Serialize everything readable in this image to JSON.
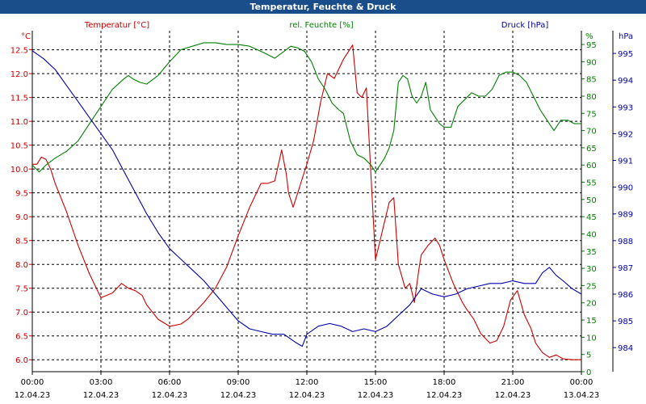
{
  "title": "Temperatur, Feuchte & Druck",
  "colors": {
    "temp": "#cc0000",
    "hum": "#008000",
    "press": "#0000aa",
    "axis": "#000000",
    "grid": "#000000",
    "title_bg": "#1a4e8a"
  },
  "chart_data": {
    "type": "line",
    "title": "Temperatur, Feuchte & Druck",
    "x_ticks": [
      {
        "time": "00:00",
        "date": "12.04.23"
      },
      {
        "time": "03:00",
        "date": "12.04.23"
      },
      {
        "time": "06:00",
        "date": "12.04.23"
      },
      {
        "time": "09:00",
        "date": "12.04.23"
      },
      {
        "time": "12:00",
        "date": "12.04.23"
      },
      {
        "time": "15:00",
        "date": "12.04.23"
      },
      {
        "time": "18:00",
        "date": "12.04.23"
      },
      {
        "time": "21:00",
        "date": "12.04.23"
      },
      {
        "time": "00:00",
        "date": "13.04.23"
      }
    ],
    "x_range_hours": [
      0,
      24
    ],
    "axes": {
      "temp": {
        "label": "Temperatur [°C]",
        "unit": "°C",
        "range": [
          5.75,
          12.9
        ],
        "ticks": [
          "12.5",
          "12.0",
          "11.5",
          "11.0",
          "10.5",
          "10.0",
          "9.5",
          "9.0",
          "8.5",
          "8.0",
          "7.5",
          "7.0",
          "6.5",
          "6.0"
        ]
      },
      "hum": {
        "label": "rel. Feuchte [%]",
        "unit": "%",
        "range": [
          0,
          99
        ],
        "ticks": [
          "95",
          "90",
          "85",
          "80",
          "75",
          "70",
          "65",
          "60",
          "55",
          "50",
          "45",
          "40",
          "35",
          "30",
          "25",
          "20",
          "15",
          "10",
          "5",
          "0"
        ]
      },
      "press": {
        "label": "Druck [hPa]",
        "unit": "hPa",
        "range": [
          983.1,
          995.85
        ],
        "ticks": [
          "995",
          "994",
          "993",
          "992",
          "991",
          "990",
          "989",
          "988",
          "987",
          "986",
          "985",
          "984"
        ]
      }
    },
    "series": [
      {
        "name": "Temperatur [°C]",
        "axis": "temp",
        "x": [
          0,
          0.2,
          0.4,
          0.6,
          0.8,
          1.0,
          1.5,
          2.0,
          2.5,
          3.0,
          3.5,
          3.9,
          4.2,
          4.5,
          4.8,
          5.0,
          5.5,
          6.0,
          6.5,
          6.8,
          7.0,
          7.5,
          8.0,
          8.5,
          9.0,
          9.5,
          10.0,
          10.3,
          10.6,
          10.9,
          11.1,
          11.2,
          11.4,
          11.6,
          11.8,
          12.0,
          12.3,
          12.6,
          12.9,
          13.2,
          13.6,
          14.0,
          14.2,
          14.4,
          14.6,
          14.8,
          15.0,
          15.2,
          15.4,
          15.6,
          15.8,
          16.0,
          16.3,
          16.5,
          16.7,
          16.9,
          17.0,
          17.3,
          17.6,
          17.8,
          18.0,
          18.2,
          18.4,
          18.6,
          18.8,
          19.0,
          19.3,
          19.6,
          20.0,
          20.3,
          20.6,
          20.9,
          21.2,
          21.5,
          21.8,
          22.0,
          22.3,
          22.6,
          22.9,
          23.2,
          23.6,
          23.8,
          24.0
        ],
        "values": [
          10.1,
          10.1,
          10.25,
          10.2,
          10.0,
          9.7,
          9.1,
          8.4,
          7.8,
          7.3,
          7.4,
          7.6,
          7.5,
          7.45,
          7.35,
          7.15,
          6.85,
          6.7,
          6.75,
          6.85,
          6.95,
          7.2,
          7.5,
          7.95,
          8.6,
          9.2,
          9.7,
          9.7,
          9.75,
          10.4,
          9.9,
          9.5,
          9.2,
          9.5,
          9.8,
          10.1,
          10.6,
          11.4,
          12.0,
          11.9,
          12.3,
          12.6,
          11.6,
          11.5,
          11.7,
          9.9,
          8.1,
          8.5,
          8.9,
          9.3,
          9.4,
          8.0,
          7.5,
          7.6,
          7.2,
          7.9,
          8.2,
          8.4,
          8.55,
          8.4,
          8.1,
          7.85,
          7.6,
          7.4,
          7.2,
          7.05,
          6.85,
          6.55,
          6.35,
          6.4,
          6.7,
          7.25,
          7.45,
          6.95,
          6.65,
          6.35,
          6.15,
          6.05,
          6.1,
          6.02,
          6.0,
          6.0,
          6.0
        ]
      },
      {
        "name": "rel. Feuchte [%]",
        "axis": "hum",
        "x": [
          0,
          0.3,
          0.6,
          1.0,
          1.5,
          2.0,
          2.5,
          3.0,
          3.5,
          4.0,
          4.2,
          4.4,
          4.7,
          5.0,
          5.5,
          6.0,
          6.5,
          7.0,
          7.5,
          8.0,
          8.5,
          9.0,
          9.5,
          10.0,
          10.3,
          10.6,
          11.0,
          11.3,
          11.6,
          11.9,
          12.2,
          12.5,
          12.8,
          13.1,
          13.4,
          13.6,
          13.9,
          14.2,
          14.5,
          14.8,
          15.0,
          15.2,
          15.4,
          15.6,
          15.8,
          16.0,
          16.2,
          16.4,
          16.6,
          16.8,
          17.0,
          17.2,
          17.4,
          17.6,
          17.8,
          18.0,
          18.3,
          18.6,
          18.9,
          19.2,
          19.5,
          19.8,
          20.1,
          20.4,
          20.7,
          21.0,
          21.3,
          21.6,
          21.9,
          22.2,
          22.5,
          22.8,
          23.1,
          23.4,
          23.7,
          24.0
        ],
        "values": [
          60,
          58,
          60,
          62,
          64,
          67,
          72,
          77,
          82,
          85,
          86,
          85,
          84,
          83.5,
          86,
          90,
          93.5,
          94.5,
          95.5,
          95.5,
          95,
          95,
          94.5,
          93,
          92,
          91,
          93,
          94.5,
          94,
          93,
          90,
          85,
          82,
          78,
          76,
          75,
          67,
          63,
          62,
          60,
          58,
          60,
          62,
          65,
          70,
          84,
          86,
          85,
          80,
          78,
          80,
          84,
          76,
          74,
          72,
          71,
          71,
          77,
          79,
          81,
          80,
          80,
          82,
          86,
          87,
          87,
          86,
          84,
          80,
          76,
          73,
          70,
          73,
          73,
          72,
          72
        ]
      },
      {
        "name": "Druck [hPa]",
        "axis": "press",
        "x": [
          0,
          0.5,
          1.0,
          1.5,
          2.0,
          2.5,
          3.0,
          3.5,
          4.0,
          4.5,
          5.0,
          5.5,
          6.0,
          6.5,
          7.0,
          7.5,
          8.0,
          8.5,
          9.0,
          9.5,
          10.0,
          10.5,
          11.0,
          11.5,
          11.8,
          12.0,
          12.5,
          13.0,
          13.5,
          14.0,
          14.5,
          15.0,
          15.5,
          16.0,
          16.5,
          17.0,
          17.5,
          18.0,
          18.5,
          19.0,
          19.5,
          20.0,
          20.5,
          21.0,
          21.5,
          22.0,
          22.3,
          22.6,
          22.9,
          23.2,
          23.6,
          24.0
        ],
        "values": [
          995.1,
          994.8,
          994.4,
          993.8,
          993.2,
          992.6,
          992.0,
          991.4,
          990.6,
          989.8,
          989.0,
          988.3,
          987.7,
          987.3,
          986.9,
          986.5,
          986.0,
          985.5,
          985.0,
          984.7,
          984.6,
          984.5,
          984.5,
          984.2,
          984.05,
          984.5,
          984.8,
          984.9,
          984.8,
          984.6,
          984.7,
          984.6,
          984.8,
          985.2,
          985.6,
          986.2,
          986.0,
          985.9,
          986.0,
          986.2,
          986.3,
          986.4,
          986.4,
          986.5,
          986.4,
          986.4,
          986.8,
          987.0,
          986.7,
          986.5,
          986.2,
          986.0
        ]
      }
    ]
  }
}
